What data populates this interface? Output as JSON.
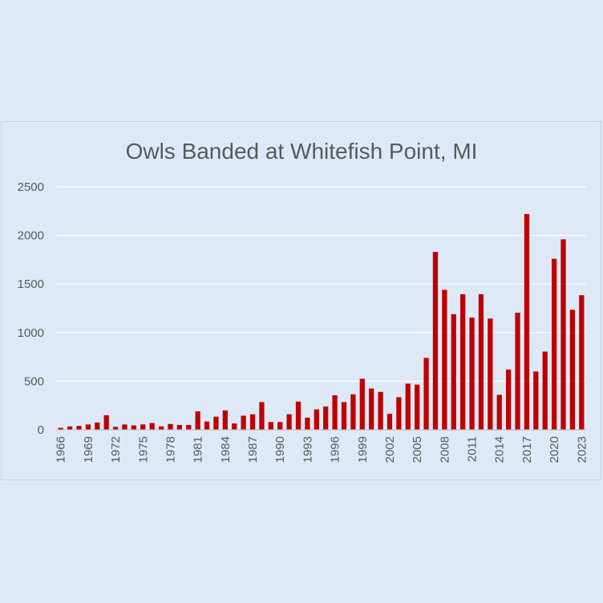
{
  "chart_data": {
    "type": "bar",
    "title": "Owls Banded at Whitefish Point, MI",
    "xlabel": "",
    "ylabel": "",
    "ylim": [
      0,
      2500
    ],
    "yticks": [
      0,
      500,
      1000,
      1500,
      2000,
      2500
    ],
    "grid": true,
    "legend": "none",
    "bar_color": "#c00000",
    "categories": [
      "1966",
      "1967",
      "1968",
      "1969",
      "1970",
      "1971",
      "1972",
      "1973",
      "1974",
      "1975",
      "1976",
      "1977",
      "1978",
      "1979",
      "1980",
      "1981",
      "1982",
      "1983",
      "1984",
      "1985",
      "1986",
      "1987",
      "1988",
      "1989",
      "1990",
      "1991",
      "1992",
      "1993",
      "1994",
      "1995",
      "1996",
      "1997",
      "1998",
      "1999",
      "2000",
      "2001",
      "2002",
      "2003",
      "2004",
      "2005",
      "2006",
      "2007",
      "2008",
      "2009",
      "2010",
      "2011",
      "2012",
      "2013",
      "2014",
      "2015",
      "2016",
      "2017",
      "2018",
      "2019",
      "2020",
      "2021",
      "2022",
      "2023"
    ],
    "x_tick_labels": [
      "1966",
      "1969",
      "1972",
      "1975",
      "1978",
      "1981",
      "1984",
      "1987",
      "1990",
      "1993",
      "1996",
      "1999",
      "2002",
      "2005",
      "2008",
      "2011",
      "2014",
      "2017",
      "2020",
      "2023"
    ],
    "values": [
      20,
      35,
      40,
      55,
      75,
      150,
      30,
      55,
      45,
      55,
      70,
      35,
      60,
      50,
      50,
      190,
      85,
      135,
      200,
      65,
      145,
      160,
      285,
      80,
      80,
      160,
      290,
      125,
      210,
      240,
      355,
      285,
      365,
      525,
      425,
      390,
      165,
      335,
      475,
      465,
      740,
      1830,
      1440,
      1190,
      1395,
      1155,
      1395,
      1145,
      360,
      620,
      1205,
      2220,
      600,
      805,
      1760,
      1960,
      1235,
      1385
    ]
  }
}
